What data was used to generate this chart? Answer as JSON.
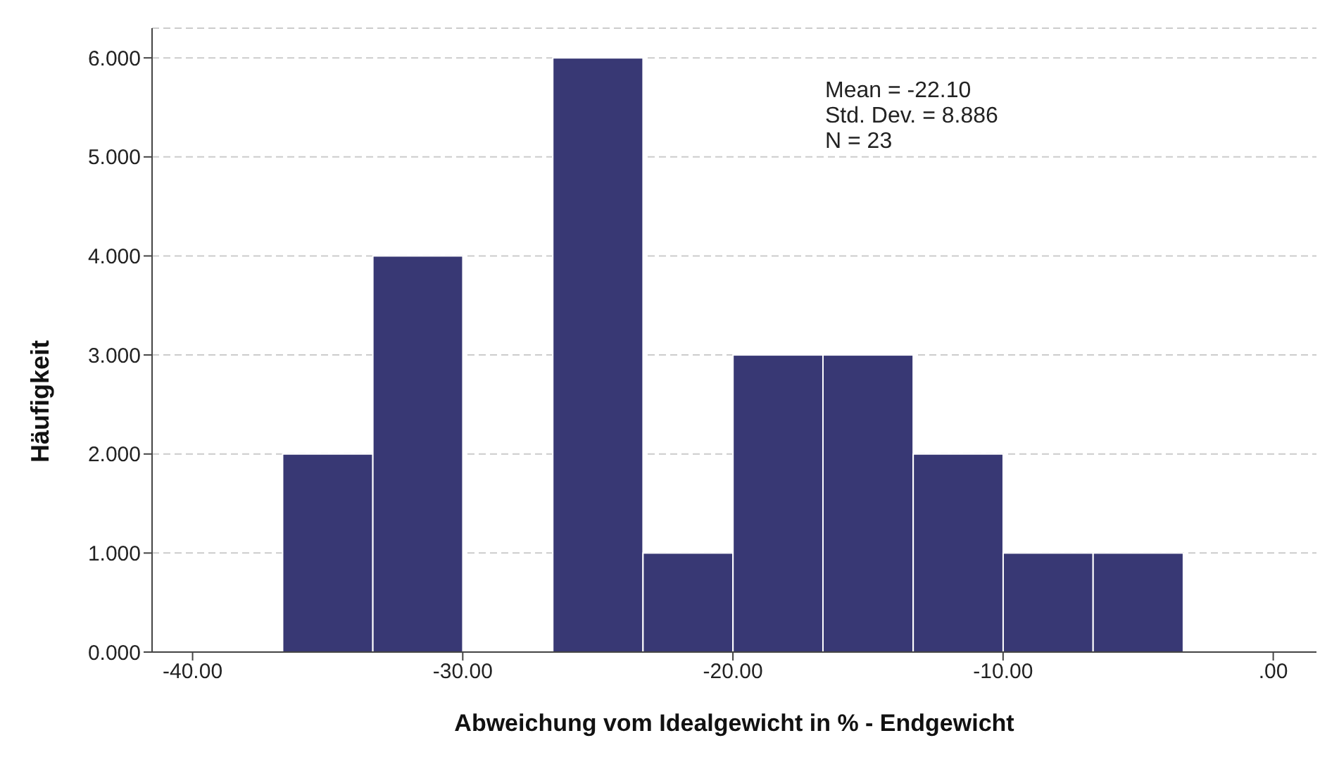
{
  "chart_data": {
    "type": "histogram",
    "xlabel": "Abweichung vom Idealgewicht in % - Endgewicht",
    "ylabel": "Häufigkeit",
    "bins": [
      -36.67,
      -33.33,
      -30,
      -26.67,
      -23.33,
      -20,
      -16.67,
      -13.33,
      -10,
      -6.67,
      -3.33
    ],
    "values": [
      2,
      4,
      0,
      6,
      1,
      3,
      3,
      2,
      1,
      1
    ],
    "color": "#383874",
    "xlim": [
      -41.5,
      1.6
    ],
    "xticks": [
      {
        "value": -40,
        "label": "-40.00"
      },
      {
        "value": -30,
        "label": "-30.00"
      },
      {
        "value": -20,
        "label": "-20.00"
      },
      {
        "value": -10,
        "label": "-10.00"
      },
      {
        "value": 0,
        "label": ".00"
      }
    ],
    "ylim": [
      0,
      6.3
    ],
    "yticks": [
      {
        "value": 0,
        "label": "0.000"
      },
      {
        "value": 1,
        "label": "1.000"
      },
      {
        "value": 2,
        "label": "2.000"
      },
      {
        "value": 3,
        "label": "3.000"
      },
      {
        "value": 4,
        "label": "4.000"
      },
      {
        "value": 5,
        "label": "5.000"
      },
      {
        "value": 6,
        "label": "6.000"
      }
    ],
    "grid": "y",
    "annotations": [
      "Mean = -22.10",
      "Std. Dev. = 8.886",
      "N = 23"
    ]
  }
}
